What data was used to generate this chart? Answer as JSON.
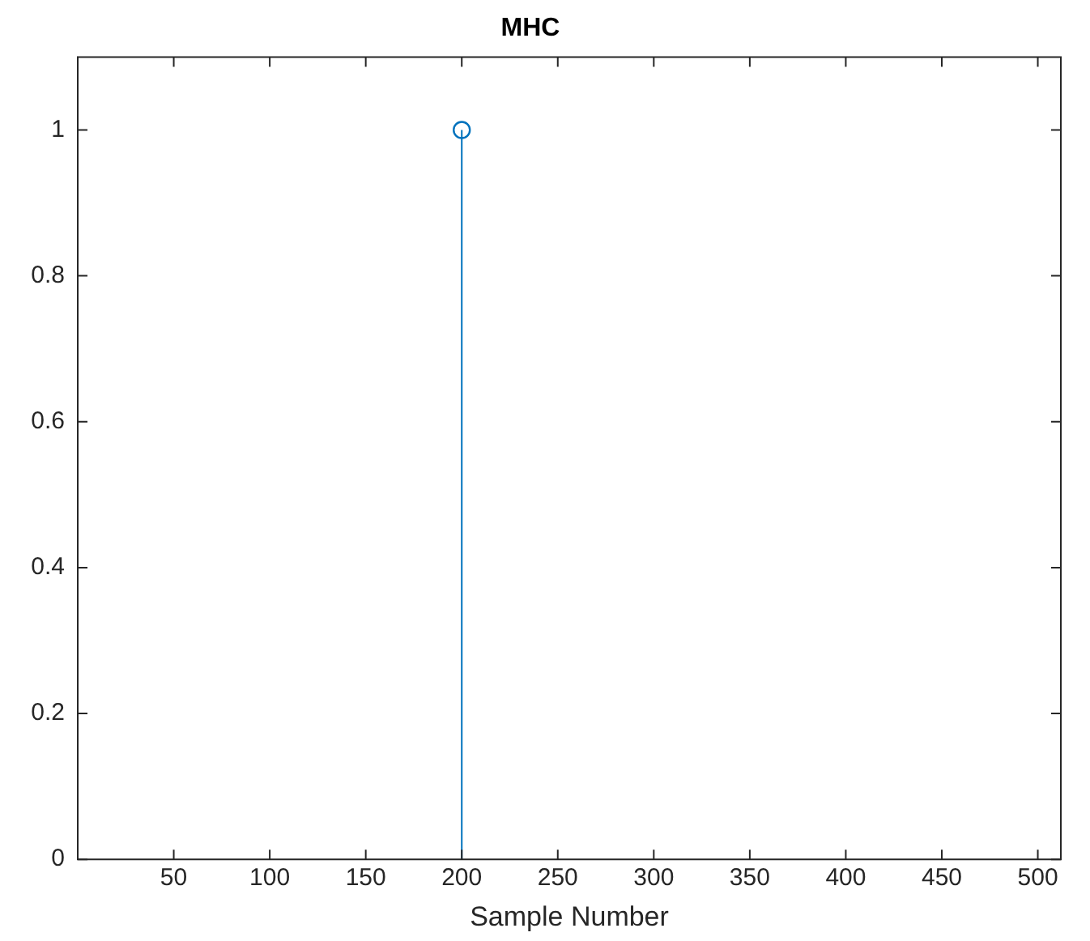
{
  "chart_data": {
    "type": "lollipop",
    "title": "MHC",
    "xlabel": "Sample Number",
    "x": [
      200
    ],
    "values": [
      1
    ],
    "color": "#0072bd",
    "marker": "circle",
    "xlim": [
      0,
      512
    ],
    "xticks": [
      50,
      100,
      150,
      200,
      250,
      300,
      350,
      400,
      450,
      500
    ],
    "ylim": [
      0,
      1.1
    ],
    "yticks": [
      0,
      0.2,
      0.4,
      0.6,
      0.8,
      1
    ],
    "grid": false,
    "legend": false
  }
}
